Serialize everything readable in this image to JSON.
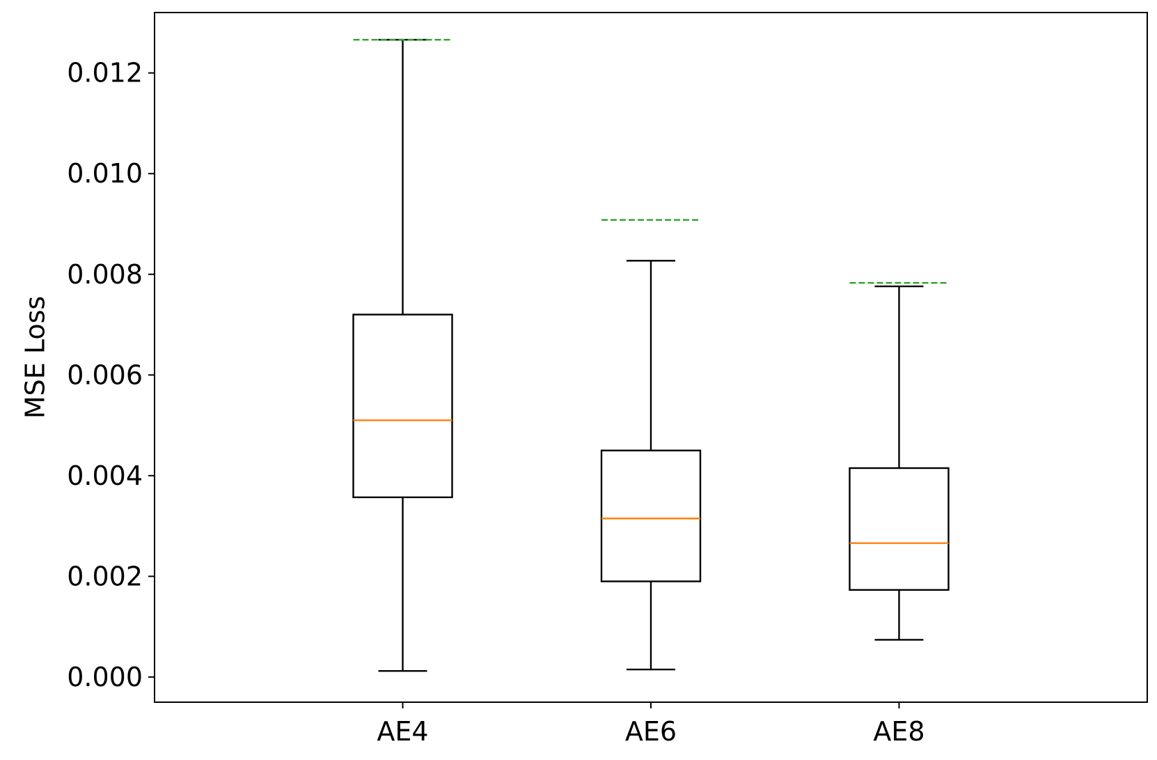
{
  "chart_data": {
    "type": "box",
    "title": "",
    "xlabel": "",
    "ylabel": "MSE Loss",
    "ylim": [
      -0.0005,
      0.0132
    ],
    "yticks": [
      "0.000",
      "0.002",
      "0.004",
      "0.006",
      "0.008",
      "0.010",
      "0.012"
    ],
    "ytick_values": [
      0.0,
      0.002,
      0.004,
      0.006,
      0.008,
      0.01,
      0.012
    ],
    "categories": [
      "AE4",
      "AE6",
      "AE8"
    ],
    "boxes": [
      {
        "category": "AE4",
        "whisker_low": 0.00012,
        "q1": 0.00357,
        "median": 0.0051,
        "q3": 0.0072,
        "whisker_high": 0.01266,
        "dashed_reference": 0.01266
      },
      {
        "category": "AE6",
        "whisker_low": 0.00015,
        "q1": 0.0019,
        "median": 0.00315,
        "q3": 0.0045,
        "whisker_high": 0.00827,
        "dashed_reference": 0.00908
      },
      {
        "category": "AE8",
        "whisker_low": 0.00074,
        "q1": 0.00173,
        "median": 0.00266,
        "q3": 0.00415,
        "whisker_high": 0.00776,
        "dashed_reference": 0.00783
      }
    ],
    "grid": false,
    "colors": {
      "box": "#000000",
      "median": "#ff7f0e",
      "dashed_reference": "#2ca02c"
    }
  }
}
